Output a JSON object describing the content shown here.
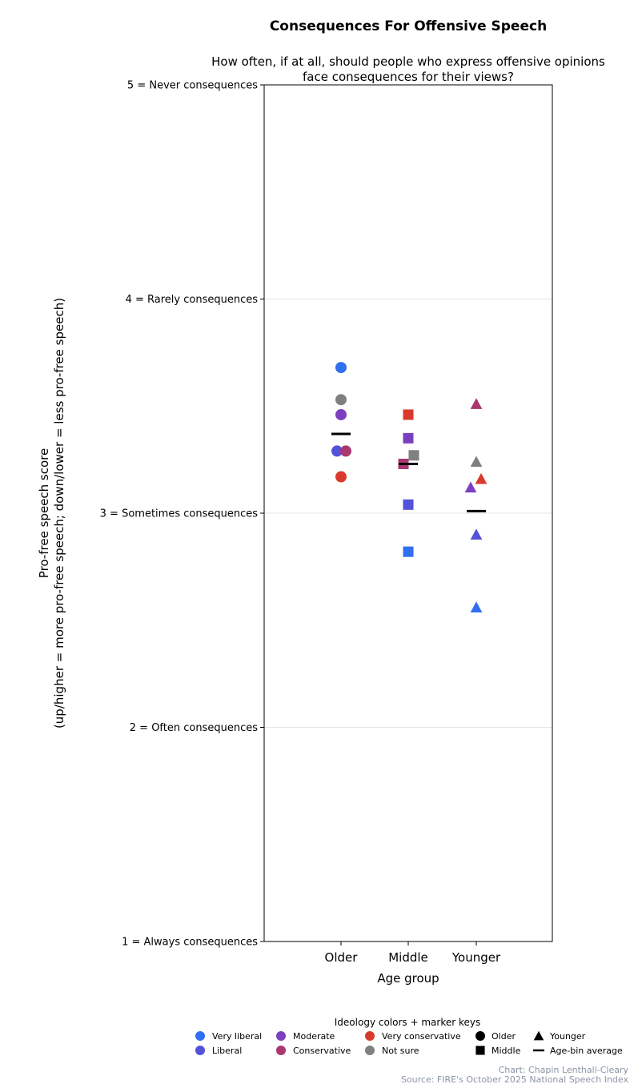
{
  "chart_data": {
    "type": "scatter",
    "title": "Consequences For Offensive Speech",
    "subtitle_lines": [
      "How often, if at all, should people who express offensive opinions",
      "face consequences for their views?"
    ],
    "xlabel": "Age group",
    "ylabel_lines": [
      "Pro-free speech score",
      "(up/higher = more pro-free speech; down/lower = less pro-free speech)"
    ],
    "categories": [
      "Older",
      "Middle",
      "Younger"
    ],
    "ylim": [
      1,
      5
    ],
    "yticks": [
      {
        "value": 5,
        "label": "5 = Never consequences"
      },
      {
        "value": 4,
        "label": "4 = Rarely consequences"
      },
      {
        "value": 3,
        "label": "3 = Sometimes consequences"
      },
      {
        "value": 2,
        "label": "2 = Often consequences"
      },
      {
        "value": 1,
        "label": "1 = Always consequences"
      }
    ],
    "grid": true,
    "series": [
      {
        "name": "Very liberal",
        "color": "#2f6ff0",
        "values": [
          3.68,
          2.82,
          2.56
        ]
      },
      {
        "name": "Liberal",
        "color": "#5352d9",
        "values": [
          3.29,
          3.04,
          2.9
        ]
      },
      {
        "name": "Moderate",
        "color": "#7b3fbf",
        "values": [
          3.46,
          3.35,
          3.12
        ]
      },
      {
        "name": "Conservative",
        "color": "#a8386f",
        "values": [
          3.29,
          3.23,
          3.51
        ]
      },
      {
        "name": "Very conservative",
        "color": "#d93a2b",
        "values": [
          3.17,
          3.46,
          3.16
        ]
      },
      {
        "name": "Not sure",
        "color": "#808080",
        "values": [
          3.53,
          3.27,
          3.24
        ]
      }
    ],
    "age_bin_average": [
      3.37,
      3.23,
      3.01
    ],
    "legend": {
      "title": "Ideology colors + marker keys",
      "placement": "bottom-center",
      "marker_keys": [
        {
          "label": "Older",
          "shape": "circle"
        },
        {
          "label": "Middle",
          "shape": "square"
        },
        {
          "label": "Younger",
          "shape": "triangle"
        },
        {
          "label": "Age-bin average",
          "shape": "dash"
        }
      ]
    }
  },
  "credits": {
    "author": "Chart: Chapin Lenthall-Cleary",
    "source": "Source: FIRE's October 2025 National Speech Index"
  }
}
